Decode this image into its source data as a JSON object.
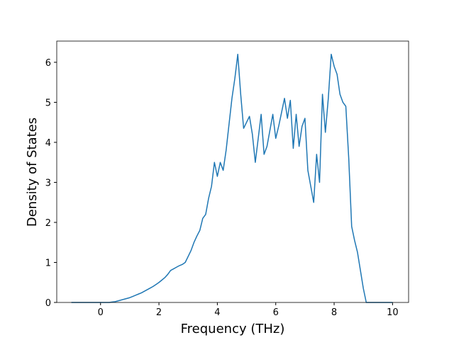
{
  "chart_data": {
    "type": "line",
    "x_label": "Frequency (THz)",
    "y_label": "Density of States",
    "x": [
      -1.0,
      -0.9,
      -0.8,
      -0.7,
      -0.6,
      -0.5,
      -0.4,
      -0.3,
      -0.2,
      -0.1,
      0.0,
      0.1,
      0.2,
      0.3,
      0.4,
      0.5,
      0.6,
      0.7,
      0.8,
      0.9,
      1.0,
      1.1,
      1.2,
      1.3,
      1.4,
      1.5,
      1.6,
      1.7,
      1.8,
      1.9,
      2.0,
      2.1,
      2.2,
      2.3,
      2.4,
      2.5,
      2.6,
      2.7,
      2.8,
      2.9,
      3.0,
      3.1,
      3.2,
      3.3,
      3.4,
      3.5,
      3.6,
      3.7,
      3.8,
      3.9,
      4.0,
      4.1,
      4.2,
      4.3,
      4.4,
      4.5,
      4.6,
      4.7,
      4.8,
      4.9,
      5.0,
      5.1,
      5.2,
      5.3,
      5.4,
      5.5,
      5.6,
      5.7,
      5.8,
      5.9,
      6.0,
      6.1,
      6.2,
      6.3,
      6.4,
      6.5,
      6.6,
      6.7,
      6.8,
      6.9,
      7.0,
      7.1,
      7.2,
      7.3,
      7.4,
      7.5,
      7.6,
      7.7,
      7.8,
      7.9,
      8.0,
      8.1,
      8.2,
      8.3,
      8.4,
      8.5,
      8.6,
      8.7,
      8.8,
      8.9,
      9.0,
      9.1,
      9.2,
      9.3,
      9.4,
      9.5,
      9.6,
      9.7,
      9.8,
      9.9,
      10.0
    ],
    "series": [
      {
        "name": "DOS",
        "color": "#1f77b4",
        "values": [
          0,
          0,
          0,
          0,
          0,
          0,
          0,
          0,
          0,
          0,
          0,
          0,
          0,
          0,
          0.01,
          0.02,
          0.04,
          0.06,
          0.08,
          0.1,
          0.12,
          0.15,
          0.18,
          0.21,
          0.24,
          0.28,
          0.32,
          0.36,
          0.4,
          0.45,
          0.5,
          0.56,
          0.62,
          0.7,
          0.8,
          0.84,
          0.88,
          0.92,
          0.95,
          1.0,
          1.15,
          1.3,
          1.5,
          1.66,
          1.8,
          2.1,
          2.2,
          2.6,
          2.9,
          3.5,
          3.15,
          3.5,
          3.3,
          3.8,
          4.45,
          5.1,
          5.6,
          6.2,
          5.2,
          4.35,
          4.5,
          4.65,
          4.2,
          3.5,
          4.1,
          4.7,
          3.7,
          3.9,
          4.3,
          4.7,
          4.1,
          4.4,
          4.75,
          5.1,
          4.6,
          5.05,
          3.85,
          4.7,
          3.9,
          4.4,
          4.6,
          3.3,
          2.9,
          2.5,
          3.7,
          3.0,
          5.2,
          4.25,
          5.1,
          6.2,
          5.9,
          5.7,
          5.2,
          5.0,
          4.9,
          3.6,
          1.9,
          1.55,
          1.25,
          0.8,
          0.35,
          0,
          0,
          0,
          0,
          0,
          0,
          0,
          0,
          0,
          0
        ]
      }
    ],
    "xlim": [
      -1.5,
      10.55
    ],
    "ylim": [
      0,
      6.53
    ],
    "xticks": [
      0,
      2,
      4,
      6,
      8,
      10
    ],
    "yticks": [
      0,
      1,
      2,
      3,
      4,
      5,
      6
    ]
  }
}
